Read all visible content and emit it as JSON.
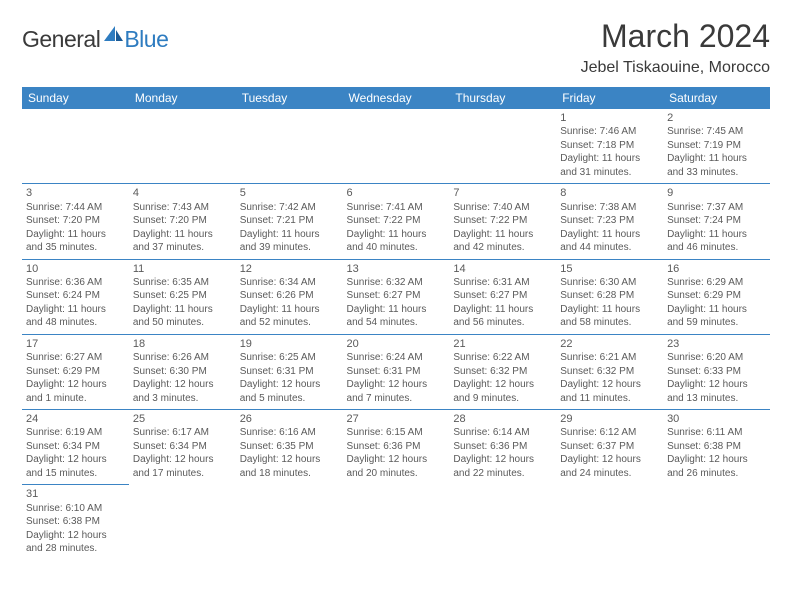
{
  "logo": {
    "general": "General",
    "blue": "Blue"
  },
  "title": "March 2024",
  "location": "Jebel Tiskaouine, Morocco",
  "header_color": "#3b84c4",
  "grid_border_color": "#3b84c4",
  "text_color": "#5a5a5a",
  "weekdays": [
    "Sunday",
    "Monday",
    "Tuesday",
    "Wednesday",
    "Thursday",
    "Friday",
    "Saturday"
  ],
  "weeks": [
    [
      null,
      null,
      null,
      null,
      null,
      {
        "n": "1",
        "sr": "Sunrise: 7:46 AM",
        "ss": "Sunset: 7:18 PM",
        "d1": "Daylight: 11 hours",
        "d2": "and 31 minutes."
      },
      {
        "n": "2",
        "sr": "Sunrise: 7:45 AM",
        "ss": "Sunset: 7:19 PM",
        "d1": "Daylight: 11 hours",
        "d2": "and 33 minutes."
      }
    ],
    [
      {
        "n": "3",
        "sr": "Sunrise: 7:44 AM",
        "ss": "Sunset: 7:20 PM",
        "d1": "Daylight: 11 hours",
        "d2": "and 35 minutes."
      },
      {
        "n": "4",
        "sr": "Sunrise: 7:43 AM",
        "ss": "Sunset: 7:20 PM",
        "d1": "Daylight: 11 hours",
        "d2": "and 37 minutes."
      },
      {
        "n": "5",
        "sr": "Sunrise: 7:42 AM",
        "ss": "Sunset: 7:21 PM",
        "d1": "Daylight: 11 hours",
        "d2": "and 39 minutes."
      },
      {
        "n": "6",
        "sr": "Sunrise: 7:41 AM",
        "ss": "Sunset: 7:22 PM",
        "d1": "Daylight: 11 hours",
        "d2": "and 40 minutes."
      },
      {
        "n": "7",
        "sr": "Sunrise: 7:40 AM",
        "ss": "Sunset: 7:22 PM",
        "d1": "Daylight: 11 hours",
        "d2": "and 42 minutes."
      },
      {
        "n": "8",
        "sr": "Sunrise: 7:38 AM",
        "ss": "Sunset: 7:23 PM",
        "d1": "Daylight: 11 hours",
        "d2": "and 44 minutes."
      },
      {
        "n": "9",
        "sr": "Sunrise: 7:37 AM",
        "ss": "Sunset: 7:24 PM",
        "d1": "Daylight: 11 hours",
        "d2": "and 46 minutes."
      }
    ],
    [
      {
        "n": "10",
        "sr": "Sunrise: 6:36 AM",
        "ss": "Sunset: 6:24 PM",
        "d1": "Daylight: 11 hours",
        "d2": "and 48 minutes."
      },
      {
        "n": "11",
        "sr": "Sunrise: 6:35 AM",
        "ss": "Sunset: 6:25 PM",
        "d1": "Daylight: 11 hours",
        "d2": "and 50 minutes."
      },
      {
        "n": "12",
        "sr": "Sunrise: 6:34 AM",
        "ss": "Sunset: 6:26 PM",
        "d1": "Daylight: 11 hours",
        "d2": "and 52 minutes."
      },
      {
        "n": "13",
        "sr": "Sunrise: 6:32 AM",
        "ss": "Sunset: 6:27 PM",
        "d1": "Daylight: 11 hours",
        "d2": "and 54 minutes."
      },
      {
        "n": "14",
        "sr": "Sunrise: 6:31 AM",
        "ss": "Sunset: 6:27 PM",
        "d1": "Daylight: 11 hours",
        "d2": "and 56 minutes."
      },
      {
        "n": "15",
        "sr": "Sunrise: 6:30 AM",
        "ss": "Sunset: 6:28 PM",
        "d1": "Daylight: 11 hours",
        "d2": "and 58 minutes."
      },
      {
        "n": "16",
        "sr": "Sunrise: 6:29 AM",
        "ss": "Sunset: 6:29 PM",
        "d1": "Daylight: 11 hours",
        "d2": "and 59 minutes."
      }
    ],
    [
      {
        "n": "17",
        "sr": "Sunrise: 6:27 AM",
        "ss": "Sunset: 6:29 PM",
        "d1": "Daylight: 12 hours",
        "d2": "and 1 minute."
      },
      {
        "n": "18",
        "sr": "Sunrise: 6:26 AM",
        "ss": "Sunset: 6:30 PM",
        "d1": "Daylight: 12 hours",
        "d2": "and 3 minutes."
      },
      {
        "n": "19",
        "sr": "Sunrise: 6:25 AM",
        "ss": "Sunset: 6:31 PM",
        "d1": "Daylight: 12 hours",
        "d2": "and 5 minutes."
      },
      {
        "n": "20",
        "sr": "Sunrise: 6:24 AM",
        "ss": "Sunset: 6:31 PM",
        "d1": "Daylight: 12 hours",
        "d2": "and 7 minutes."
      },
      {
        "n": "21",
        "sr": "Sunrise: 6:22 AM",
        "ss": "Sunset: 6:32 PM",
        "d1": "Daylight: 12 hours",
        "d2": "and 9 minutes."
      },
      {
        "n": "22",
        "sr": "Sunrise: 6:21 AM",
        "ss": "Sunset: 6:32 PM",
        "d1": "Daylight: 12 hours",
        "d2": "and 11 minutes."
      },
      {
        "n": "23",
        "sr": "Sunrise: 6:20 AM",
        "ss": "Sunset: 6:33 PM",
        "d1": "Daylight: 12 hours",
        "d2": "and 13 minutes."
      }
    ],
    [
      {
        "n": "24",
        "sr": "Sunrise: 6:19 AM",
        "ss": "Sunset: 6:34 PM",
        "d1": "Daylight: 12 hours",
        "d2": "and 15 minutes."
      },
      {
        "n": "25",
        "sr": "Sunrise: 6:17 AM",
        "ss": "Sunset: 6:34 PM",
        "d1": "Daylight: 12 hours",
        "d2": "and 17 minutes."
      },
      {
        "n": "26",
        "sr": "Sunrise: 6:16 AM",
        "ss": "Sunset: 6:35 PM",
        "d1": "Daylight: 12 hours",
        "d2": "and 18 minutes."
      },
      {
        "n": "27",
        "sr": "Sunrise: 6:15 AM",
        "ss": "Sunset: 6:36 PM",
        "d1": "Daylight: 12 hours",
        "d2": "and 20 minutes."
      },
      {
        "n": "28",
        "sr": "Sunrise: 6:14 AM",
        "ss": "Sunset: 6:36 PM",
        "d1": "Daylight: 12 hours",
        "d2": "and 22 minutes."
      },
      {
        "n": "29",
        "sr": "Sunrise: 6:12 AM",
        "ss": "Sunset: 6:37 PM",
        "d1": "Daylight: 12 hours",
        "d2": "and 24 minutes."
      },
      {
        "n": "30",
        "sr": "Sunrise: 6:11 AM",
        "ss": "Sunset: 6:38 PM",
        "d1": "Daylight: 12 hours",
        "d2": "and 26 minutes."
      }
    ],
    [
      {
        "n": "31",
        "sr": "Sunrise: 6:10 AM",
        "ss": "Sunset: 6:38 PM",
        "d1": "Daylight: 12 hours",
        "d2": "and 28 minutes."
      },
      null,
      null,
      null,
      null,
      null,
      null
    ]
  ]
}
